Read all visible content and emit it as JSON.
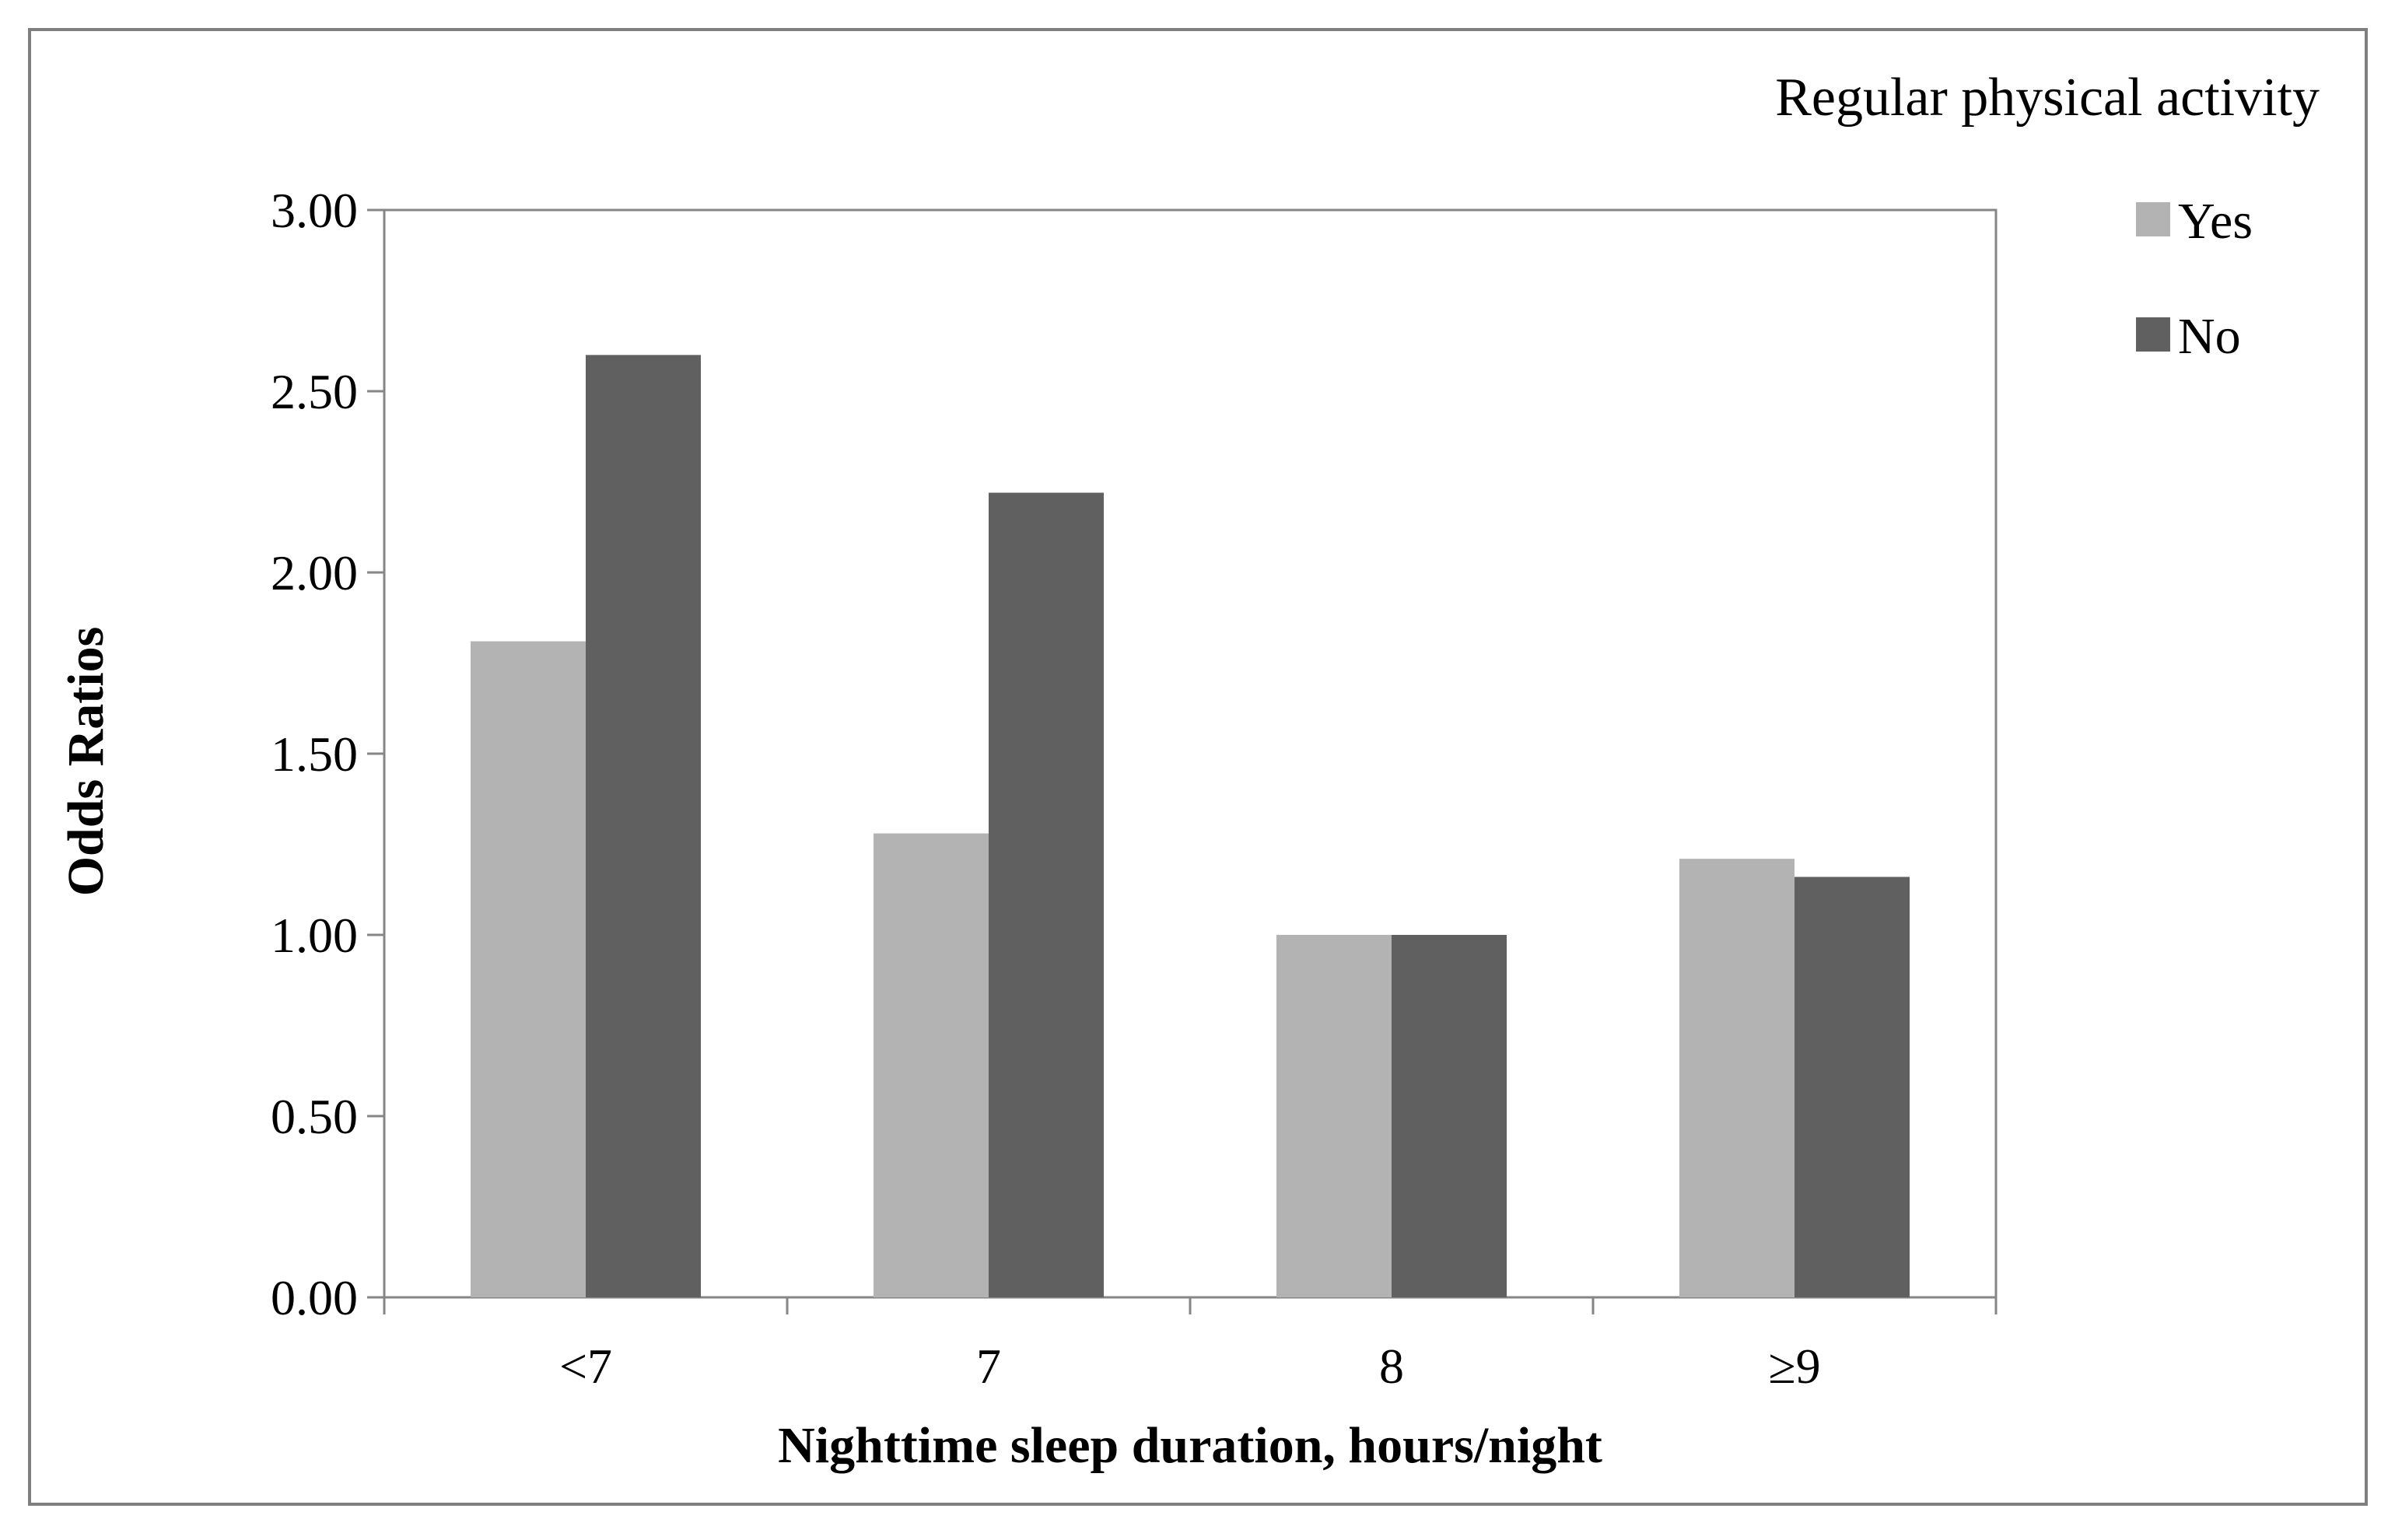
{
  "chart_data": {
    "type": "bar",
    "xlabel": "Nighttime sleep duration, hours/night",
    "ylabel": "Odds Ratios",
    "categories": [
      "<7",
      "7",
      "8",
      "≥9"
    ],
    "ylim": [
      0,
      3
    ],
    "yticks": [
      "0.00",
      "0.50",
      "1.00",
      "1.50",
      "2.00",
      "2.50",
      "3.00"
    ],
    "yticks_values": [
      0,
      0.5,
      1,
      1.5,
      2,
      2.5,
      3
    ],
    "legend": {
      "title": "Regular physical activity",
      "placement": "top-right"
    },
    "grid": false,
    "series": [
      {
        "name": "Yes",
        "color": "#b3b3b3",
        "values": [
          1.81,
          1.28,
          1.0,
          1.21
        ]
      },
      {
        "name": "No",
        "color": "#606060",
        "values": [
          2.6,
          2.22,
          1.0,
          1.16
        ]
      }
    ]
  }
}
